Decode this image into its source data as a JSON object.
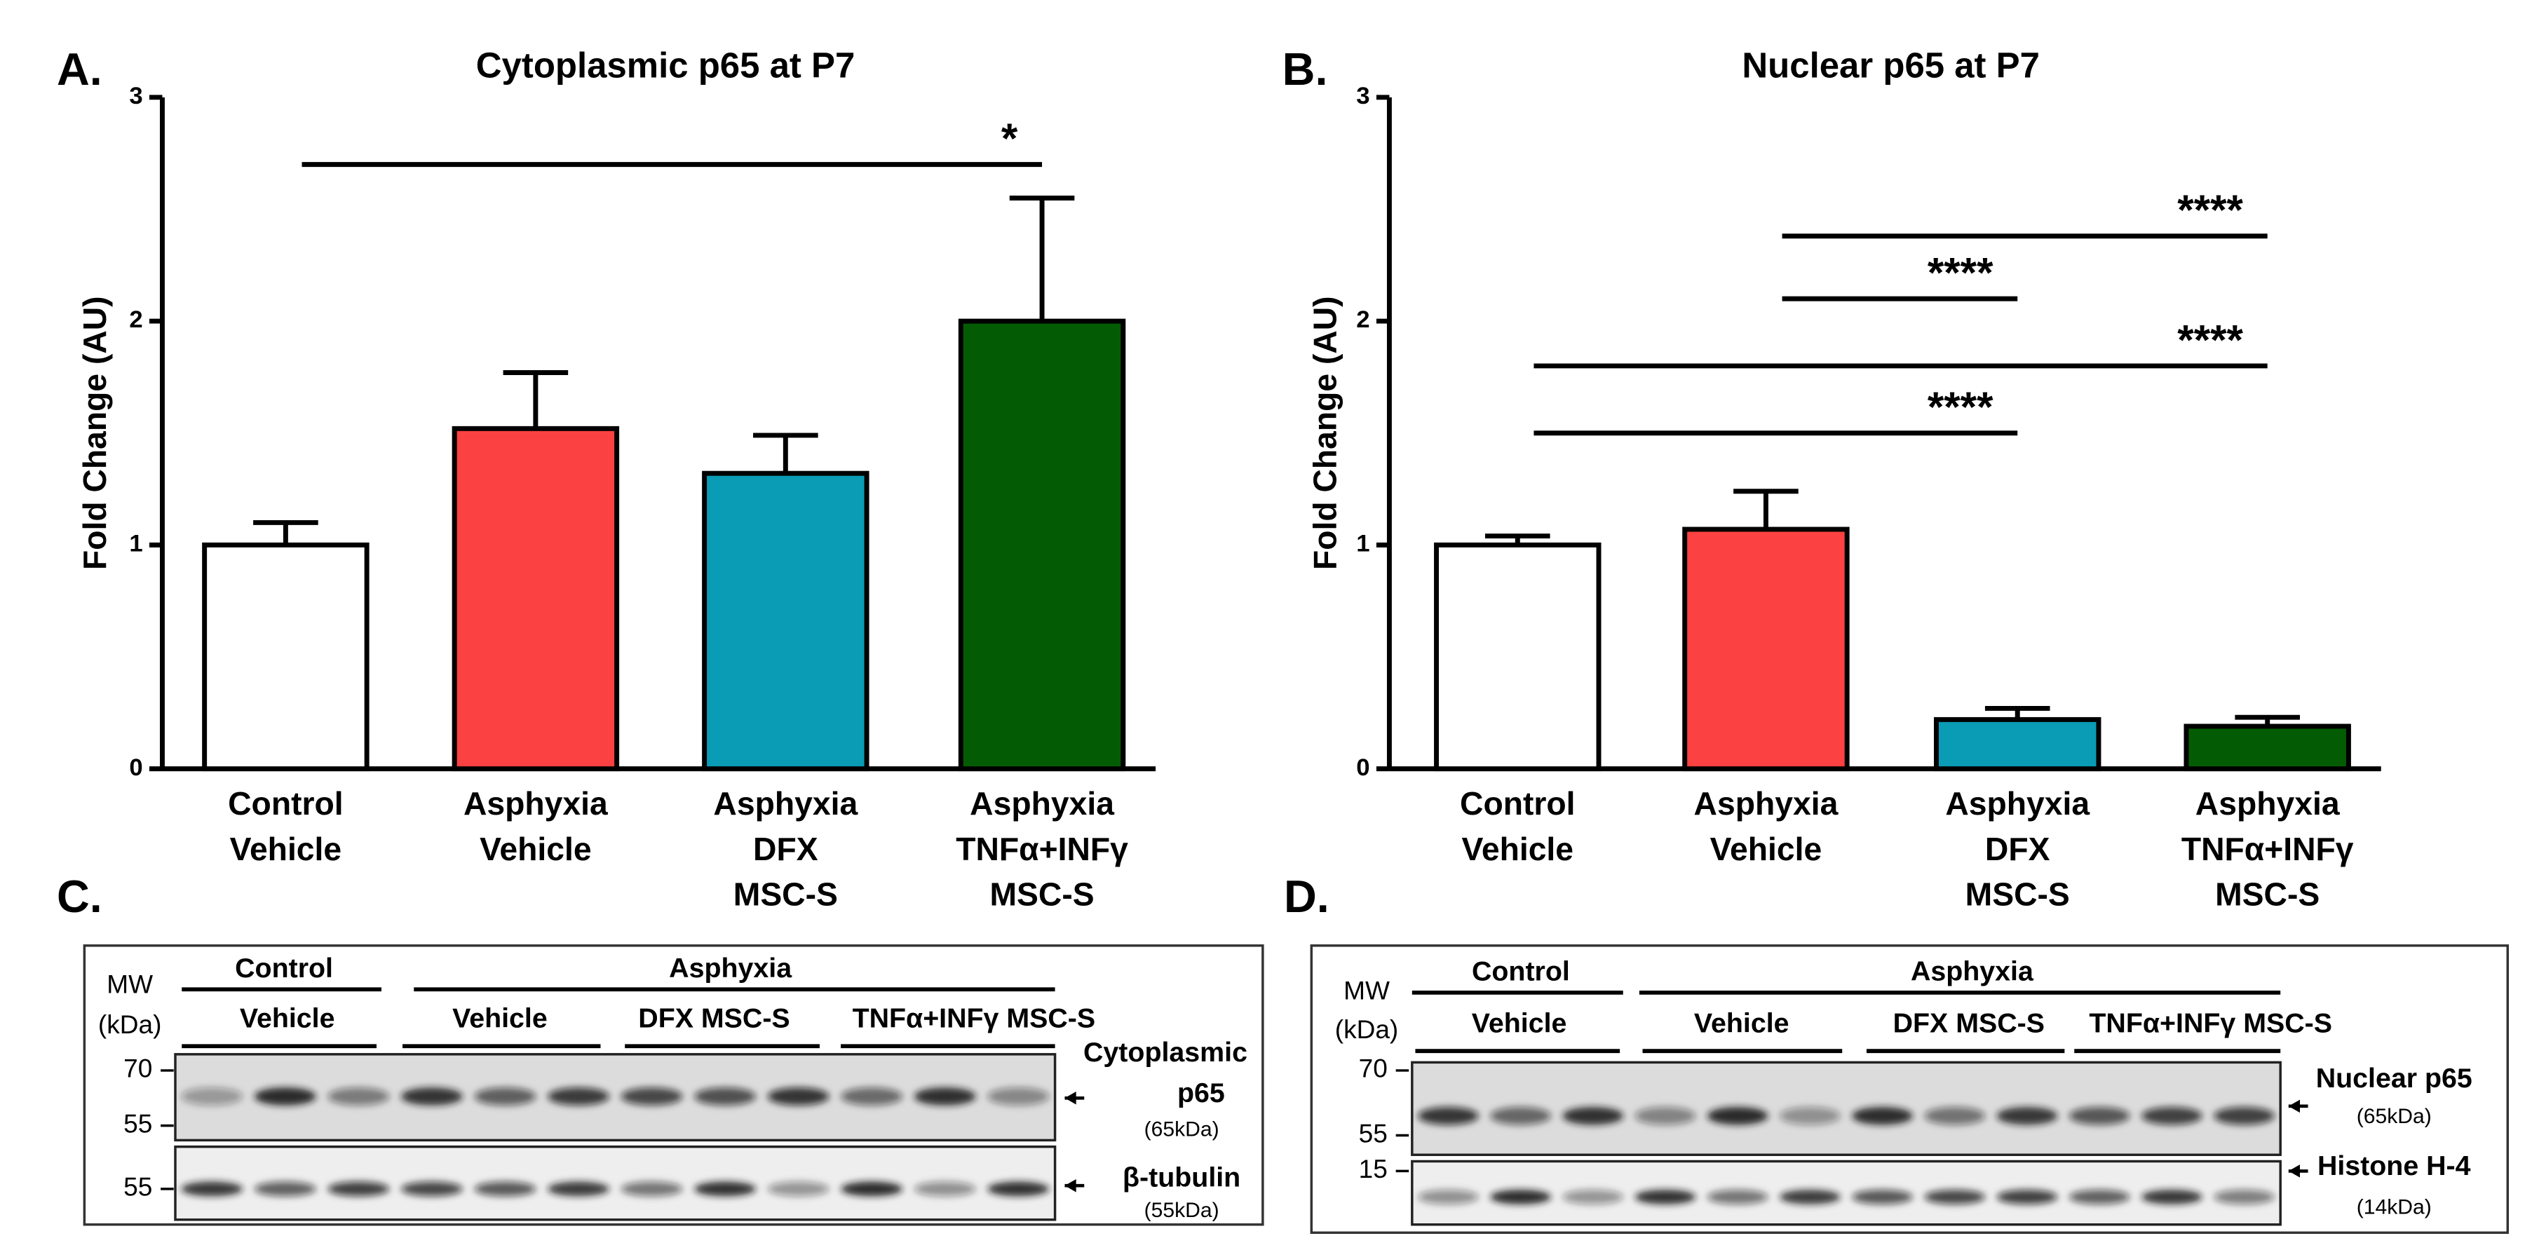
{
  "chart_data": [
    {
      "type": "bar",
      "panel_label": "A.",
      "title": "Cytoplasmic p65 at P7",
      "y_label": "Fold Change (AU)",
      "categories": [
        [
          "Control",
          "Vehicle"
        ],
        [
          "Asphyxia",
          "Vehicle"
        ],
        [
          "Asphyxia",
          "DFX",
          "MSC-S"
        ],
        [
          "Asphyxia",
          "TNFα+INFγ",
          "MSC-S"
        ]
      ],
      "values": [
        1.0,
        1.52,
        1.32,
        2.0
      ],
      "errors": [
        0.1,
        0.25,
        0.17,
        0.55
      ],
      "colors": [
        "#ffffff",
        "#fb4141",
        "#0a9bb5",
        "#035c03"
      ],
      "ylim": [
        0,
        3
      ],
      "yticks": [
        0,
        1,
        2,
        3
      ],
      "annotations": [
        {
          "from": 0,
          "to": 3,
          "y": 2.7,
          "label": "*"
        }
      ]
    },
    {
      "type": "bar",
      "panel_label": "B.",
      "title": "Nuclear p65 at P7",
      "y_label": "Fold Change (AU)",
      "categories": [
        [
          "Control",
          "Vehicle"
        ],
        [
          "Asphyxia",
          "Vehicle"
        ],
        [
          "Asphyxia",
          "DFX",
          "MSC-S"
        ],
        [
          "Asphyxia",
          "TNFα+INFγ",
          "MSC-S"
        ]
      ],
      "values": [
        1.0,
        1.07,
        0.22,
        0.19
      ],
      "errors": [
        0.04,
        0.17,
        0.05,
        0.04
      ],
      "colors": [
        "#ffffff",
        "#fb4141",
        "#0a9bb5",
        "#035c03"
      ],
      "ylim": [
        0,
        3
      ],
      "yticks": [
        0,
        1,
        2,
        3
      ],
      "annotations": [
        {
          "from": 1,
          "to": 3,
          "y": 2.38,
          "label": "****"
        },
        {
          "from": 1,
          "to": 2,
          "y": 2.1,
          "label": "****"
        },
        {
          "from": 0,
          "to": 3,
          "y": 1.8,
          "label": "****"
        },
        {
          "from": 0,
          "to": 2,
          "y": 1.5,
          "label": "****"
        }
      ]
    }
  ],
  "blots": [
    {
      "panel": "C.",
      "mw": "MW",
      "mw_unit": "(kDa)",
      "groups": [
        "Control",
        "Asphyxia"
      ],
      "subgroups": [
        "Vehicle",
        "Vehicle",
        "DFX MSC-S",
        "TNFα+INFγ MSC-S"
      ],
      "markers": [
        "70",
        "55",
        "55"
      ],
      "targets": [
        [
          "Cytoplasmic",
          "p65",
          "(65kDa)"
        ],
        [
          "β-tubulin",
          "(55kDa)"
        ]
      ]
    },
    {
      "panel": "D.",
      "mw": "MW",
      "mw_unit": "(kDa)",
      "groups": [
        "Control",
        "Asphyxia"
      ],
      "subgroups": [
        "Vehicle",
        "Vehicle",
        "DFX MSC-S",
        "TNFα+INFγ MSC-S"
      ],
      "markers": [
        "70",
        "55",
        "15"
      ],
      "targets": [
        [
          "Nuclear p65",
          "(65kDa)"
        ],
        [
          "Histone H-4",
          "(14kDa)"
        ]
      ]
    }
  ]
}
